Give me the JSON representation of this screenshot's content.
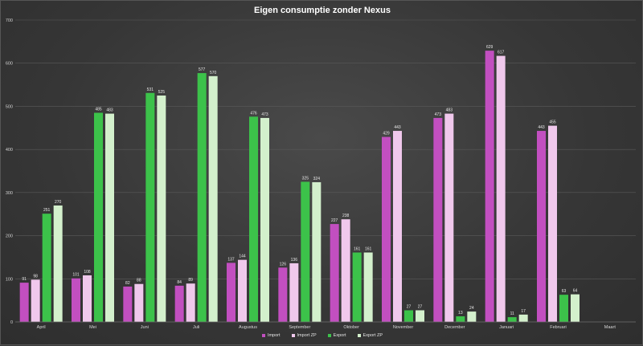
{
  "chart_data": {
    "type": "bar",
    "title": "Eigen consumptie zonder Nexus",
    "categories": [
      "April",
      "Mei",
      "Juni",
      "Juli",
      "Augustus",
      "September",
      "Oktober",
      "November",
      "December",
      "Januari",
      "Februari",
      "Maart"
    ],
    "ylim": [
      0,
      700
    ],
    "yticks": [
      0,
      100,
      200,
      300,
      400,
      500,
      600,
      700
    ],
    "grid": true,
    "legend_position": "bottom",
    "series": [
      {
        "name": "Import",
        "color": "#c24fc0",
        "values": [
          91,
          101,
          82,
          84,
          137,
          126,
          227,
          429,
          473,
          629,
          443,
          null
        ]
      },
      {
        "name": "Import ZP",
        "color": "#f0c8ec",
        "values": [
          98,
          108,
          88,
          89,
          144,
          136,
          238,
          443,
          483,
          617,
          455,
          null
        ]
      },
      {
        "name": "Export",
        "color": "#3cc24a",
        "values": [
          251,
          485,
          531,
          577,
          476,
          325,
          161,
          27,
          13,
          11,
          63,
          null
        ]
      },
      {
        "name": "Export ZP",
        "color": "#d3f0cc",
        "values": [
          270,
          483,
          525,
          570,
          473,
          324,
          161,
          27,
          24,
          17,
          64,
          null
        ]
      }
    ]
  }
}
